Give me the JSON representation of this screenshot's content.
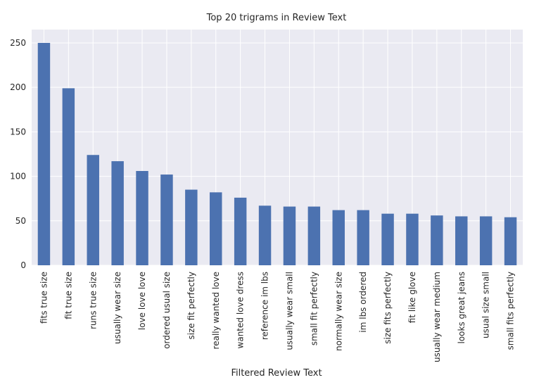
{
  "chart_data": {
    "type": "bar",
    "title": "Top 20 trigrams in Review Text",
    "xlabel": "Filtered Review Text",
    "ylabel": "",
    "ylim": [
      0,
      265
    ],
    "yticks": [
      0,
      50,
      100,
      150,
      200,
      250
    ],
    "grid": true,
    "legend": "none",
    "bar_color": "#4c72b0",
    "background_color": "#eaeaf2",
    "grid_color": "#ffffff",
    "categories": [
      "fits true size",
      "fit true size",
      "runs true size",
      "usually wear size",
      "love love love",
      "ordered usual size",
      "size fit perfectly",
      "really wanted love",
      "wanted love dress",
      "reference im lbs",
      "usually wear small",
      "small fit perfectly",
      "normally wear size",
      "im lbs ordered",
      "size fits perfectly",
      "fit like glove",
      "usually wear medium",
      "looks great jeans",
      "usual size small",
      "small fits perfectly"
    ],
    "values": [
      250,
      199,
      124,
      117,
      106,
      102,
      85,
      82,
      76,
      67,
      66,
      66,
      62,
      62,
      58,
      58,
      56,
      55,
      55,
      54
    ]
  }
}
